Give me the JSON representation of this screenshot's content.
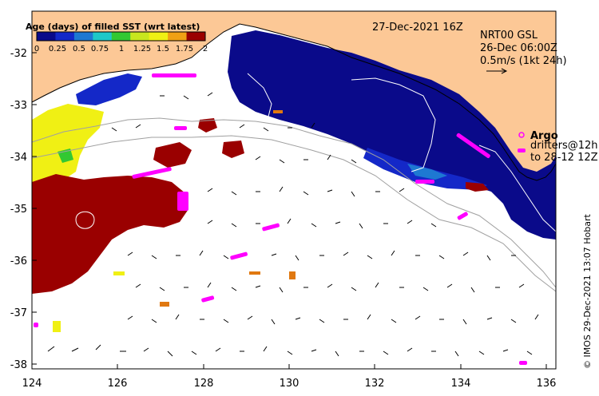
{
  "map": {
    "date_label": "27-Dec-2021 16Z",
    "product": {
      "line1": "NRT00 GSL",
      "line2": "26-Dec 06:00Z",
      "line3": "0.5m/s (1kt 24h)"
    },
    "legend": {
      "argo_label": "Argo",
      "drifters_line1": "drifters@12h",
      "drifters_line2": "to 28-12 12Z"
    },
    "colorbar": {
      "title": "Age (days) of filled SST (wrt latest)",
      "ticks": [
        "0",
        "0.25",
        "0.5",
        "0.75",
        "1",
        "1.25",
        "1.5",
        "1.75",
        "2"
      ],
      "colors": [
        "#0a0a8a",
        "#1428c8",
        "#1e78d2",
        "#1ec8c8",
        "#32c832",
        "#c8e61e",
        "#f0f014",
        "#f0a014",
        "#9a0000"
      ]
    },
    "x_axis": {
      "ticks": [
        "124",
        "126",
        "128",
        "130",
        "132",
        "134",
        "136"
      ],
      "range": [
        124,
        136.5
      ]
    },
    "y_axis": {
      "ticks": [
        "-32",
        "-33",
        "-34",
        "-35",
        "-36",
        "-37",
        "-38"
      ],
      "range": [
        -38.1,
        -31.2
      ]
    },
    "credit": "© IMOS 29-Dec-2021 13:07 Hobart",
    "colors": {
      "land": "#fcc896",
      "deep_blue": "#0a0a8a",
      "mid_blue": "#1428c8",
      "red": "#9a0000",
      "yellow": "#f0f014",
      "magenta": "#ff00ff",
      "orange": "#e07810"
    }
  }
}
